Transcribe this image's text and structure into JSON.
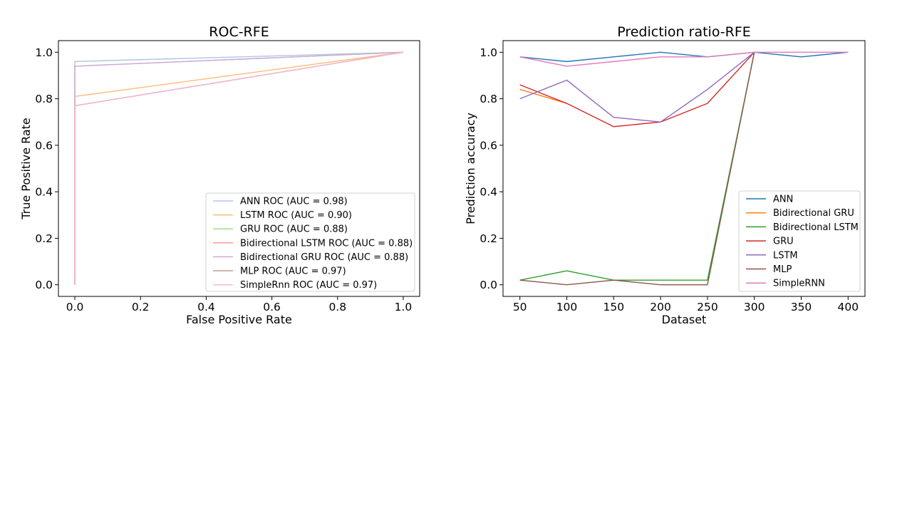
{
  "chart_data": [
    {
      "type": "line",
      "title": "ROC-RFE",
      "xlabel": "False Positive Rate",
      "ylabel": "True Positive Rate",
      "xlim": [
        -0.05,
        1.05
      ],
      "ylim": [
        -0.05,
        1.05
      ],
      "xticks": [
        "0.0",
        "0.2",
        "0.4",
        "0.6",
        "0.8",
        "1.0"
      ],
      "yticks": [
        "0.0",
        "0.2",
        "0.4",
        "0.6",
        "0.8",
        "1.0"
      ],
      "legend_position": "lower-right",
      "grid": false,
      "series": [
        {
          "name": "ANN ROC (AUC = 0.98)",
          "color": "#aec7e8",
          "points": [
            [
              0,
              0
            ],
            [
              0,
              0.96
            ],
            [
              1,
              1
            ]
          ]
        },
        {
          "name": "LSTM ROC (AUC = 0.90)",
          "color": "#ffbb78",
          "points": [
            [
              0,
              0
            ],
            [
              0,
              0.81
            ],
            [
              1,
              1
            ]
          ]
        },
        {
          "name": "GRU ROC (AUC = 0.88)",
          "color": "#98df8a",
          "points": [
            [
              0,
              0
            ],
            [
              0,
              0.77
            ],
            [
              1,
              1
            ]
          ]
        },
        {
          "name": "Bidirectional LSTM ROC (AUC = 0.88)",
          "color": "#ff9896",
          "points": [
            [
              0,
              0
            ],
            [
              0,
              0.94
            ],
            [
              1,
              1
            ]
          ]
        },
        {
          "name": "Bidirectional GRU ROC (AUC = 0.88)",
          "color": "#c5b0d5",
          "points": [
            [
              0,
              0
            ],
            [
              0,
              0.94
            ],
            [
              1,
              1
            ]
          ]
        },
        {
          "name": "MLP ROC (AUC = 0.97)",
          "color": "#c49c94",
          "points": [
            [
              0,
              0
            ],
            [
              0,
              0.77
            ],
            [
              1,
              1
            ]
          ]
        },
        {
          "name": "SimpleRnn ROC (AUC = 0.97)",
          "color": "#f7b6d2",
          "points": [
            [
              0,
              0
            ],
            [
              0,
              0.77
            ],
            [
              1,
              1
            ]
          ]
        }
      ]
    },
    {
      "type": "line",
      "title": "Prediction ratio-RFE",
      "xlabel": "Dataset",
      "ylabel": "Prediction accuracy",
      "xlim": [
        32,
        418
      ],
      "ylim": [
        -0.05,
        1.05
      ],
      "xticks": [
        "50",
        "100",
        "150",
        "200",
        "250",
        "300",
        "350",
        "400"
      ],
      "yticks": [
        "0.0",
        "0.2",
        "0.4",
        "0.6",
        "0.8",
        "1.0"
      ],
      "legend_position": "lower-right",
      "grid": false,
      "series": [
        {
          "name": "ANN",
          "color": "#1f77b4",
          "points": [
            [
              50,
              0.98
            ],
            [
              100,
              0.96
            ],
            [
              150,
              0.98
            ],
            [
              200,
              1.0
            ],
            [
              250,
              0.98
            ],
            [
              300,
              1.0
            ],
            [
              350,
              0.98
            ],
            [
              400,
              1.0
            ]
          ]
        },
        {
          "name": "Bidirectional GRU",
          "color": "#ff7f0e",
          "points": [
            [
              50,
              0.84
            ],
            [
              100,
              0.78
            ]
          ]
        },
        {
          "name": "Bidirectional LSTM",
          "color": "#2ca02c",
          "points": [
            [
              50,
              0.02
            ],
            [
              100,
              0.06
            ],
            [
              150,
              0.02
            ],
            [
              200,
              0.02
            ],
            [
              250,
              0.02
            ],
            [
              300,
              1.0
            ]
          ]
        },
        {
          "name": "GRU",
          "color": "#d62728",
          "points": [
            [
              50,
              0.86
            ],
            [
              100,
              0.78
            ],
            [
              150,
              0.68
            ],
            [
              200,
              0.7
            ],
            [
              250,
              0.78
            ],
            [
              300,
              1.0
            ]
          ]
        },
        {
          "name": "LSTM",
          "color": "#9467bd",
          "points": [
            [
              50,
              0.8
            ],
            [
              100,
              0.88
            ],
            [
              150,
              0.72
            ],
            [
              200,
              0.7
            ],
            [
              250,
              0.84
            ],
            [
              300,
              1.0
            ]
          ]
        },
        {
          "name": "MLP",
          "color": "#8c564b",
          "points": [
            [
              50,
              0.02
            ],
            [
              100,
              0.0
            ],
            [
              150,
              0.02
            ],
            [
              200,
              0.0
            ],
            [
              250,
              0.0
            ],
            [
              300,
              1.0
            ]
          ]
        },
        {
          "name": "SimpleRNN",
          "color": "#e377c2",
          "points": [
            [
              50,
              0.98
            ],
            [
              100,
              0.94
            ],
            [
              150,
              0.96
            ],
            [
              200,
              0.98
            ],
            [
              250,
              0.98
            ],
            [
              300,
              1.0
            ],
            [
              350,
              1.0
            ],
            [
              400,
              1.0
            ]
          ]
        }
      ]
    }
  ]
}
